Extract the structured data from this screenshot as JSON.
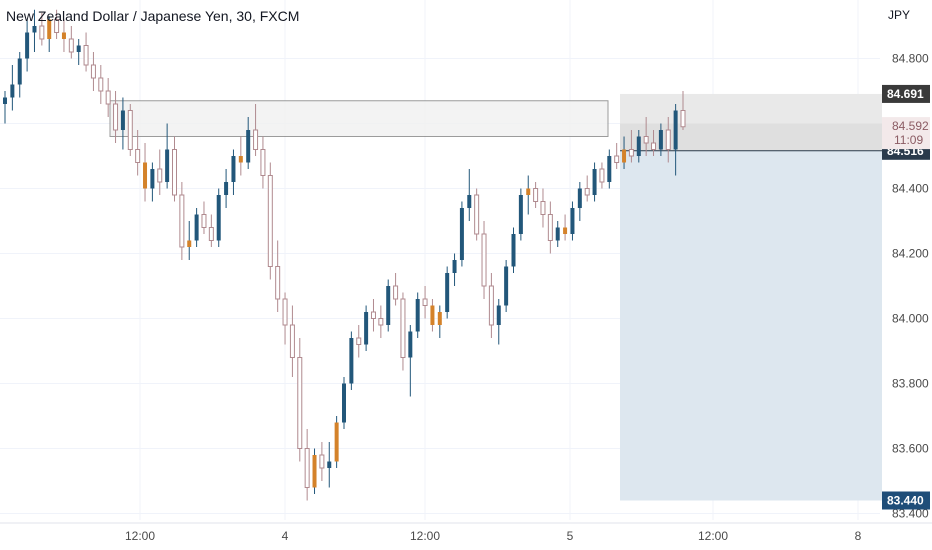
{
  "header": {
    "title": "New Zealand Dollar / Japanese Yen, 30, FXCM",
    "currency": "JPY"
  },
  "colors": {
    "up": "#22577a",
    "down_outline": "#b08a8f",
    "doji": "#d4822a",
    "grid": "#f0f3fa",
    "zone_fill": "#f1f1f1",
    "short_fill": "#dde7ef",
    "stop_fill": "#e9e9e9",
    "label_bg": "#2a3b4c",
    "price_line": "#2a3b4c"
  },
  "chart_data": {
    "type": "candlestick",
    "y_ticks": [
      "84.800",
      "84.592",
      "84.400",
      "84.200",
      "84.000",
      "83.800",
      "83.600",
      "83.400"
    ],
    "x_ticks": [
      "12:00",
      "4",
      "12:00",
      "5",
      "12:00",
      "8"
    ],
    "price_labels": {
      "stop": "84.691",
      "current": "84.592",
      "countdown": "11:09",
      "entry": "84.516",
      "target": "83.440"
    },
    "ylim": [
      83.38,
      84.98
    ],
    "candles": [
      [
        84.66,
        84.7,
        84.6,
        84.68
      ],
      [
        84.68,
        84.78,
        84.64,
        84.72
      ],
      [
        84.72,
        84.82,
        84.68,
        84.8
      ],
      [
        84.8,
        84.92,
        84.76,
        84.88
      ],
      [
        84.88,
        84.95,
        84.82,
        84.9
      ],
      [
        84.9,
        84.94,
        84.84,
        84.86
      ],
      [
        84.86,
        84.93,
        84.82,
        84.92
      ],
      [
        84.92,
        84.95,
        84.86,
        84.88
      ],
      [
        84.88,
        84.92,
        84.82,
        84.86
      ],
      [
        84.86,
        84.9,
        84.8,
        84.82
      ],
      [
        84.82,
        84.86,
        84.78,
        84.84
      ],
      [
        84.84,
        84.88,
        84.76,
        84.78
      ],
      [
        84.78,
        84.82,
        84.7,
        84.74
      ],
      [
        84.74,
        84.78,
        84.66,
        84.7
      ],
      [
        84.7,
        84.74,
        84.62,
        84.66
      ],
      [
        84.66,
        84.7,
        84.54,
        84.58
      ],
      [
        84.58,
        84.68,
        84.52,
        84.64
      ],
      [
        84.64,
        84.66,
        84.5,
        84.52
      ],
      [
        84.52,
        84.58,
        84.44,
        84.48
      ],
      [
        84.48,
        84.54,
        84.36,
        84.4
      ],
      [
        84.4,
        84.48,
        84.36,
        84.46
      ],
      [
        84.46,
        84.52,
        84.38,
        84.42
      ],
      [
        84.42,
        84.6,
        84.4,
        84.52
      ],
      [
        84.52,
        84.56,
        84.36,
        84.38
      ],
      [
        84.38,
        84.42,
        84.18,
        84.22
      ],
      [
        84.22,
        84.3,
        84.18,
        84.24
      ],
      [
        84.24,
        84.34,
        84.22,
        84.32
      ],
      [
        84.32,
        84.36,
        84.26,
        84.28
      ],
      [
        84.28,
        84.32,
        84.22,
        84.24
      ],
      [
        84.24,
        84.4,
        84.22,
        84.38
      ],
      [
        84.38,
        84.46,
        84.34,
        84.42
      ],
      [
        84.42,
        84.52,
        84.38,
        84.5
      ],
      [
        84.5,
        84.56,
        84.44,
        84.48
      ],
      [
        84.48,
        84.62,
        84.46,
        84.58
      ],
      [
        84.58,
        84.66,
        84.5,
        84.52
      ],
      [
        84.52,
        84.56,
        84.4,
        84.44
      ],
      [
        84.44,
        84.48,
        84.12,
        84.16
      ],
      [
        84.16,
        84.24,
        84.02,
        84.06
      ],
      [
        84.06,
        84.08,
        83.92,
        83.98
      ],
      [
        83.98,
        84.04,
        83.82,
        83.88
      ],
      [
        83.88,
        83.94,
        83.56,
        83.6
      ],
      [
        83.6,
        83.66,
        83.44,
        83.48
      ],
      [
        83.48,
        83.6,
        83.46,
        83.58
      ],
      [
        83.58,
        83.62,
        83.5,
        83.54
      ],
      [
        83.54,
        83.62,
        83.48,
        83.56
      ],
      [
        83.56,
        83.7,
        83.54,
        83.68
      ],
      [
        83.68,
        83.82,
        83.66,
        83.8
      ],
      [
        83.8,
        83.96,
        83.78,
        83.94
      ],
      [
        83.94,
        83.98,
        83.88,
        83.92
      ],
      [
        83.92,
        84.04,
        83.9,
        84.02
      ],
      [
        84.02,
        84.06,
        83.96,
        84.0
      ],
      [
        84.0,
        84.04,
        83.94,
        83.98
      ],
      [
        83.98,
        84.12,
        83.96,
        84.1
      ],
      [
        84.1,
        84.14,
        84.04,
        84.06
      ],
      [
        84.06,
        84.08,
        83.84,
        83.88
      ],
      [
        83.88,
        83.98,
        83.76,
        83.96
      ],
      [
        83.96,
        84.08,
        83.94,
        84.06
      ],
      [
        84.06,
        84.1,
        84.0,
        84.04
      ],
      [
        84.04,
        84.06,
        83.96,
        83.98
      ],
      [
        83.98,
        84.04,
        83.94,
        84.02
      ],
      [
        84.02,
        84.16,
        84.0,
        84.14
      ],
      [
        84.14,
        84.2,
        84.1,
        84.18
      ],
      [
        84.18,
        84.36,
        84.16,
        84.34
      ],
      [
        84.34,
        84.46,
        84.3,
        84.38
      ],
      [
        84.38,
        84.4,
        84.24,
        84.26
      ],
      [
        84.26,
        84.3,
        84.06,
        84.1
      ],
      [
        84.1,
        84.14,
        83.94,
        83.98
      ],
      [
        83.98,
        84.06,
        83.92,
        84.04
      ],
      [
        84.04,
        84.18,
        84.02,
        84.16
      ],
      [
        84.16,
        84.28,
        84.14,
        84.26
      ],
      [
        84.26,
        84.4,
        84.24,
        84.38
      ],
      [
        84.38,
        84.44,
        84.32,
        84.4
      ],
      [
        84.4,
        84.42,
        84.34,
        84.36
      ],
      [
        84.36,
        84.4,
        84.28,
        84.32
      ],
      [
        84.32,
        84.36,
        84.2,
        84.24
      ],
      [
        84.24,
        84.3,
        84.22,
        84.28
      ],
      [
        84.28,
        84.32,
        84.24,
        84.26
      ],
      [
        84.26,
        84.36,
        84.24,
        84.34
      ],
      [
        84.34,
        84.42,
        84.3,
        84.4
      ],
      [
        84.4,
        84.44,
        84.36,
        84.38
      ],
      [
        84.38,
        84.48,
        84.36,
        84.46
      ],
      [
        84.46,
        84.48,
        84.4,
        84.42
      ],
      [
        84.42,
        84.52,
        84.4,
        84.5
      ],
      [
        84.5,
        84.54,
        84.46,
        84.48
      ],
      [
        84.48,
        84.56,
        84.46,
        84.52
      ],
      [
        84.52,
        84.58,
        84.48,
        84.5
      ],
      [
        84.5,
        84.58,
        84.48,
        84.56
      ],
      [
        84.56,
        84.62,
        84.5,
        84.54
      ],
      [
        84.54,
        84.58,
        84.5,
        84.52
      ],
      [
        84.52,
        84.6,
        84.5,
        84.58
      ],
      [
        84.58,
        84.62,
        84.48,
        84.52
      ],
      [
        84.52,
        84.66,
        84.44,
        84.64
      ],
      [
        84.64,
        84.7,
        84.58,
        84.59
      ]
    ],
    "horizontal_lines": [
      {
        "kind": "entry",
        "price": 84.516
      },
      {
        "kind": "stop",
        "price": 84.691
      },
      {
        "kind": "target",
        "price": 83.44
      }
    ],
    "zone": {
      "top": 84.67,
      "bottom": 84.56
    }
  }
}
